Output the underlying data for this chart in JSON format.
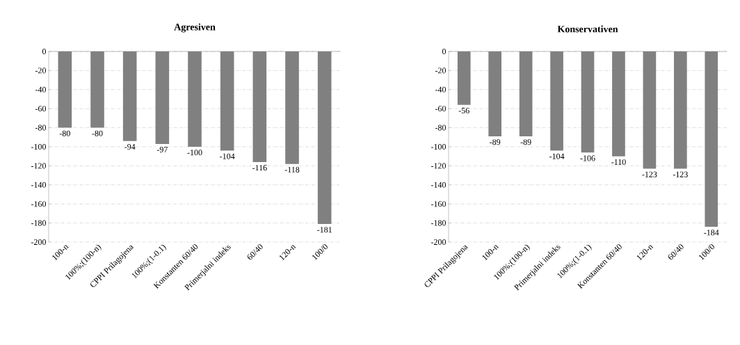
{
  "chart_data": [
    {
      "type": "bar",
      "title": "Agresiven",
      "categories": [
        "100-n",
        "100%;(100-n)",
        "CPPI Prilagojena",
        "100%;(1-0.1)",
        "Konstanten 60/40",
        "Primerjalni indeks",
        "60/40",
        "120-n",
        "100/0"
      ],
      "values": [
        -80,
        -80,
        -94,
        -97,
        -100,
        -104,
        -116,
        -118,
        -181
      ],
      "color": "#808080",
      "ylim": [
        -200,
        0
      ],
      "yticks": [
        -200,
        -180,
        -160,
        -140,
        -120,
        -100,
        -80,
        -60,
        -40,
        -20,
        0
      ],
      "grid": "y",
      "data_labels": true
    },
    {
      "type": "bar",
      "title": "Konservativen",
      "categories": [
        "CPPI Prilagojena",
        "100-n",
        "100%;(100-n)",
        "Primerjalni indeks",
        "100%;(1-0.1)",
        "Konstanten 60/40",
        "120-n",
        "60/40",
        "100/0"
      ],
      "values": [
        -56,
        -89,
        -89,
        -104,
        -106,
        -110,
        -123,
        -123,
        -184
      ],
      "color": "#808080",
      "ylim": [
        -200,
        0
      ],
      "yticks": [
        -200,
        -180,
        -160,
        -140,
        -120,
        -100,
        -80,
        -60,
        -40,
        -20,
        0
      ],
      "grid": "y",
      "data_labels": true
    }
  ]
}
